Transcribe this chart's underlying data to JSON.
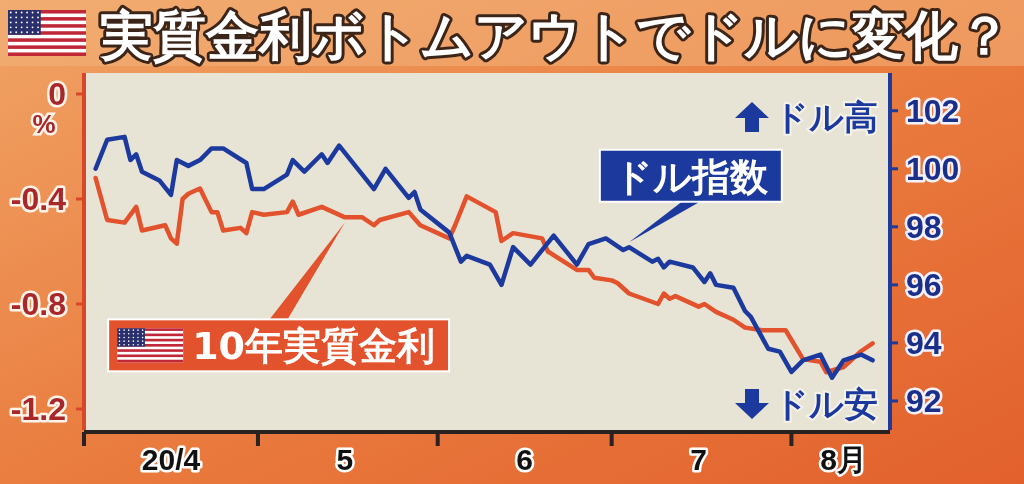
{
  "chart_data": {
    "type": "line",
    "title": "実質金利ボトムアウトでドルに変化？",
    "ylabel": "%",
    "line_style": "solid",
    "xlim": [
      "--04-01",
      "--08-18"
    ],
    "xticks": [
      {
        "value": "--04-01",
        "label": null
      },
      {
        "value": "--04-16",
        "label": "20/4"
      },
      {
        "value": "--05-01",
        "label": null
      },
      {
        "value": "--05-16",
        "label": "5"
      },
      {
        "value": "--06-01",
        "label": null
      },
      {
        "value": "--06-16",
        "label": "6"
      },
      {
        "value": "--07-01",
        "label": null
      },
      {
        "value": "--07-16",
        "label": "7"
      },
      {
        "value": "--08-01",
        "label": null
      },
      {
        "value": "--08-10",
        "label": "8月"
      }
    ],
    "ylim": [
      -1.28,
      0.08
    ],
    "yticks": [
      0,
      -0.4,
      -0.8,
      -1.2
    ],
    "y2lim": [
      91,
      103.3
    ],
    "y2ticks": [
      92,
      94,
      96,
      98,
      100,
      102
    ],
    "annotations": [
      "ドル高",
      "ドル安"
    ],
    "series": [
      {
        "name": "10年実質金利",
        "color": "#e2522c",
        "x": [
          "--04-03",
          "--04-05",
          "--04-08",
          "--04-10",
          "--04-11",
          "--04-15",
          "--04-16",
          "--04-17",
          "--04-18",
          "--04-19",
          "--04-21",
          "--04-23",
          "--04-24",
          "--04-25",
          "--04-28",
          "--04-29",
          "--04-30",
          "--05-02",
          "--05-06",
          "--05-07",
          "--05-08",
          "--05-12",
          "--05-16",
          "--05-19",
          "--05-21",
          "--05-22",
          "--05-27",
          "--05-29",
          "--06-03",
          "--06-04",
          "--06-06",
          "--06-11",
          "--06-12",
          "--06-14",
          "--06-19",
          "--06-20",
          "--06-25",
          "--06-27",
          "--06-28",
          "--07-01",
          "--07-02",
          "--07-04",
          "--07-09",
          "--07-10",
          "--07-11",
          "--07-12",
          "--07-16",
          "--07-17",
          "--07-19",
          "--07-22",
          "--07-24",
          "--07-27",
          "--07-31",
          "--08-03",
          "--08-06",
          "--08-07",
          "--08-10",
          "--08-13",
          "--08-15"
        ],
        "values": [
          -0.32,
          -0.48,
          -0.49,
          -0.43,
          -0.52,
          -0.5,
          -0.55,
          -0.57,
          -0.4,
          -0.38,
          -0.36,
          -0.45,
          -0.45,
          -0.52,
          -0.51,
          -0.53,
          -0.45,
          -0.46,
          -0.45,
          -0.41,
          -0.46,
          -0.43,
          -0.47,
          -0.47,
          -0.5,
          -0.48,
          -0.45,
          -0.5,
          -0.55,
          -0.5,
          -0.39,
          -0.45,
          -0.56,
          -0.53,
          -0.55,
          -0.6,
          -0.67,
          -0.67,
          -0.7,
          -0.71,
          -0.72,
          -0.76,
          -0.8,
          -0.76,
          -0.78,
          -0.77,
          -0.81,
          -0.8,
          -0.83,
          -0.86,
          -0.89,
          -0.9,
          -0.9,
          -1.01,
          -1.02,
          -1.06,
          -1.04,
          -0.98,
          -0.95
        ]
      },
      {
        "name": "ドル指数",
        "color": "#1c3a9e",
        "axis": "y2",
        "x": [
          "--04-03",
          "--04-05",
          "--04-08",
          "--04-09",
          "--04-10",
          "--04-11",
          "--04-14",
          "--04-16",
          "--04-17",
          "--04-19",
          "--04-21",
          "--04-23",
          "--04-25",
          "--04-29",
          "--04-30",
          "--05-02",
          "--05-06",
          "--05-07",
          "--05-09",
          "--05-12",
          "--05-13",
          "--05-15",
          "--05-21",
          "--05-23",
          "--05-27",
          "--05-28",
          "--05-29",
          "--06-03",
          "--06-05",
          "--06-06",
          "--06-10",
          "--06-12",
          "--06-14",
          "--06-17",
          "--06-21",
          "--06-25",
          "--06-27",
          "--06-30",
          "--07-03",
          "--07-04",
          "--07-08",
          "--07-09",
          "--07-10",
          "--07-11",
          "--07-15",
          "--07-17",
          "--07-18",
          "--07-19",
          "--07-22",
          "--07-24",
          "--07-25",
          "--07-28",
          "--07-30",
          "--08-01",
          "--08-03",
          "--08-06",
          "--08-08",
          "--08-10",
          "--08-13",
          "--08-15"
        ],
        "values": [
          100.0,
          101.0,
          101.1,
          100.3,
          100.5,
          99.9,
          99.6,
          99.1,
          100.3,
          100.1,
          100.3,
          100.7,
          100.7,
          100.2,
          99.3,
          99.3,
          99.8,
          100.3,
          99.9,
          100.5,
          100.2,
          100.8,
          99.3,
          100.0,
          99.0,
          99.2,
          98.6,
          97.8,
          96.8,
          97.0,
          96.7,
          96.0,
          97.3,
          96.7,
          97.7,
          96.7,
          97.4,
          97.6,
          97.2,
          97.3,
          96.8,
          96.9,
          96.6,
          96.8,
          96.6,
          96.1,
          96.4,
          96.0,
          95.9,
          95.1,
          94.9,
          93.8,
          93.7,
          93.0,
          93.4,
          93.6,
          92.8,
          93.4,
          93.6,
          93.4
        ]
      }
    ]
  }
}
